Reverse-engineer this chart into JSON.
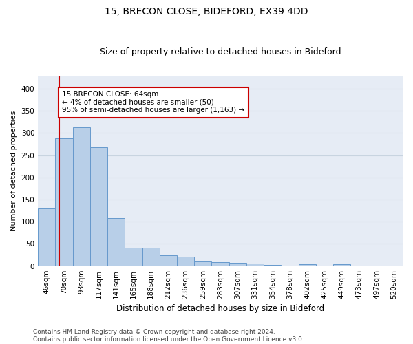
{
  "title1": "15, BRECON CLOSE, BIDEFORD, EX39 4DD",
  "title2": "Size of property relative to detached houses in Bideford",
  "xlabel": "Distribution of detached houses by size in Bideford",
  "ylabel": "Number of detached properties",
  "categories": [
    "46sqm",
    "70sqm",
    "93sqm",
    "117sqm",
    "141sqm",
    "165sqm",
    "188sqm",
    "212sqm",
    "236sqm",
    "259sqm",
    "283sqm",
    "307sqm",
    "331sqm",
    "354sqm",
    "378sqm",
    "402sqm",
    "425sqm",
    "449sqm",
    "473sqm",
    "497sqm",
    "520sqm"
  ],
  "values": [
    130,
    288,
    313,
    268,
    108,
    42,
    42,
    25,
    21,
    10,
    9,
    8,
    5,
    3,
    0,
    4,
    0,
    4,
    0,
    0,
    0
  ],
  "bar_color": "#b8cfe8",
  "bar_edge_color": "#6699cc",
  "annotation_box_text": "15 BRECON CLOSE: 64sqm\n← 4% of detached houses are smaller (50)\n95% of semi-detached houses are larger (1,163) →",
  "annotation_box_color": "#ffffff",
  "annotation_box_edge_color": "#cc0000",
  "red_line_x": 0.72,
  "ylim": [
    0,
    430
  ],
  "yticks": [
    0,
    50,
    100,
    150,
    200,
    250,
    300,
    350,
    400
  ],
  "grid_color": "#c8d4e0",
  "bg_color": "#e6ecf5",
  "footer_text": "Contains HM Land Registry data © Crown copyright and database right 2024.\nContains public sector information licensed under the Open Government Licence v3.0.",
  "title1_fontsize": 10,
  "title2_fontsize": 9,
  "xlabel_fontsize": 8.5,
  "ylabel_fontsize": 8,
  "tick_fontsize": 7.5,
  "annot_fontsize": 7.5,
  "footer_fontsize": 6.5
}
